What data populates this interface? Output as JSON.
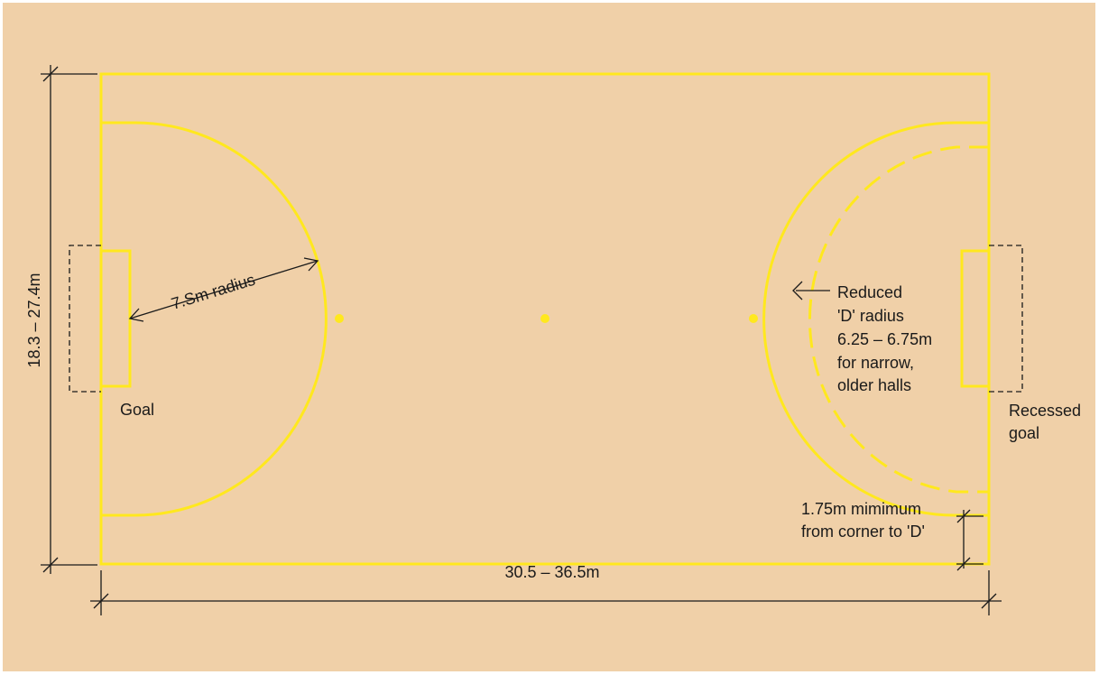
{
  "colors": {
    "background": "#F0D0A8",
    "court_lines": "#FFE81E",
    "dimension_lines": "#1a1a1a"
  },
  "labels": {
    "width_dimension": "18.3 – 27.4m",
    "length_dimension": "30.5 – 36.5m",
    "d_radius": "7.Sm radius",
    "goal": "Goal",
    "recessed_goal": [
      "Recessed",
      "goal"
    ],
    "reduced_d": [
      "Reduced",
      "'D' radius",
      "6.25 – 6.75m",
      "for narrow,",
      "older halls"
    ],
    "corner_min": [
      "1.75m mimimum",
      "from corner to 'D'"
    ]
  }
}
